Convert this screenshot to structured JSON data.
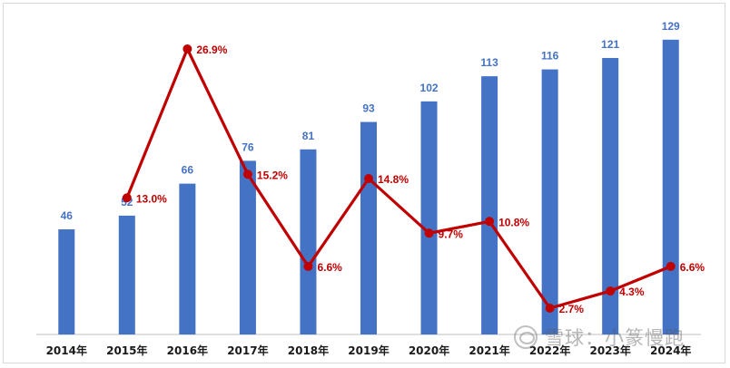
{
  "chart_data": {
    "type": "bar",
    "categories": [
      "2014年",
      "2015年",
      "2016年",
      "2017年",
      "2018年",
      "2019年",
      "2020年",
      "2021年",
      "2022年",
      "2023年",
      "2024年"
    ],
    "ylim": [
      0,
      140
    ],
    "series": [
      {
        "kind": "bar",
        "values": [
          46,
          52,
          66,
          76,
          81,
          93,
          102,
          113,
          116,
          121,
          129
        ],
        "color": "#4472C4"
      },
      {
        "kind": "line",
        "values": [
          null,
          13.0,
          26.9,
          15.2,
          6.6,
          14.8,
          9.7,
          10.8,
          2.7,
          4.3,
          6.6
        ],
        "labels": [
          null,
          "13.0%",
          "26.9%",
          "15.2%",
          "6.6%",
          "14.8%",
          "9.7%",
          "10.8%",
          "2.7%",
          "4.3%",
          "6.6%"
        ],
        "color": "#C00000",
        "ylim": [
          0,
          28
        ]
      }
    ],
    "grid": false,
    "legend": "none"
  },
  "watermark": {
    "icon": "wechat-logo-icon",
    "text": "雪球：小篆慢跑"
  }
}
